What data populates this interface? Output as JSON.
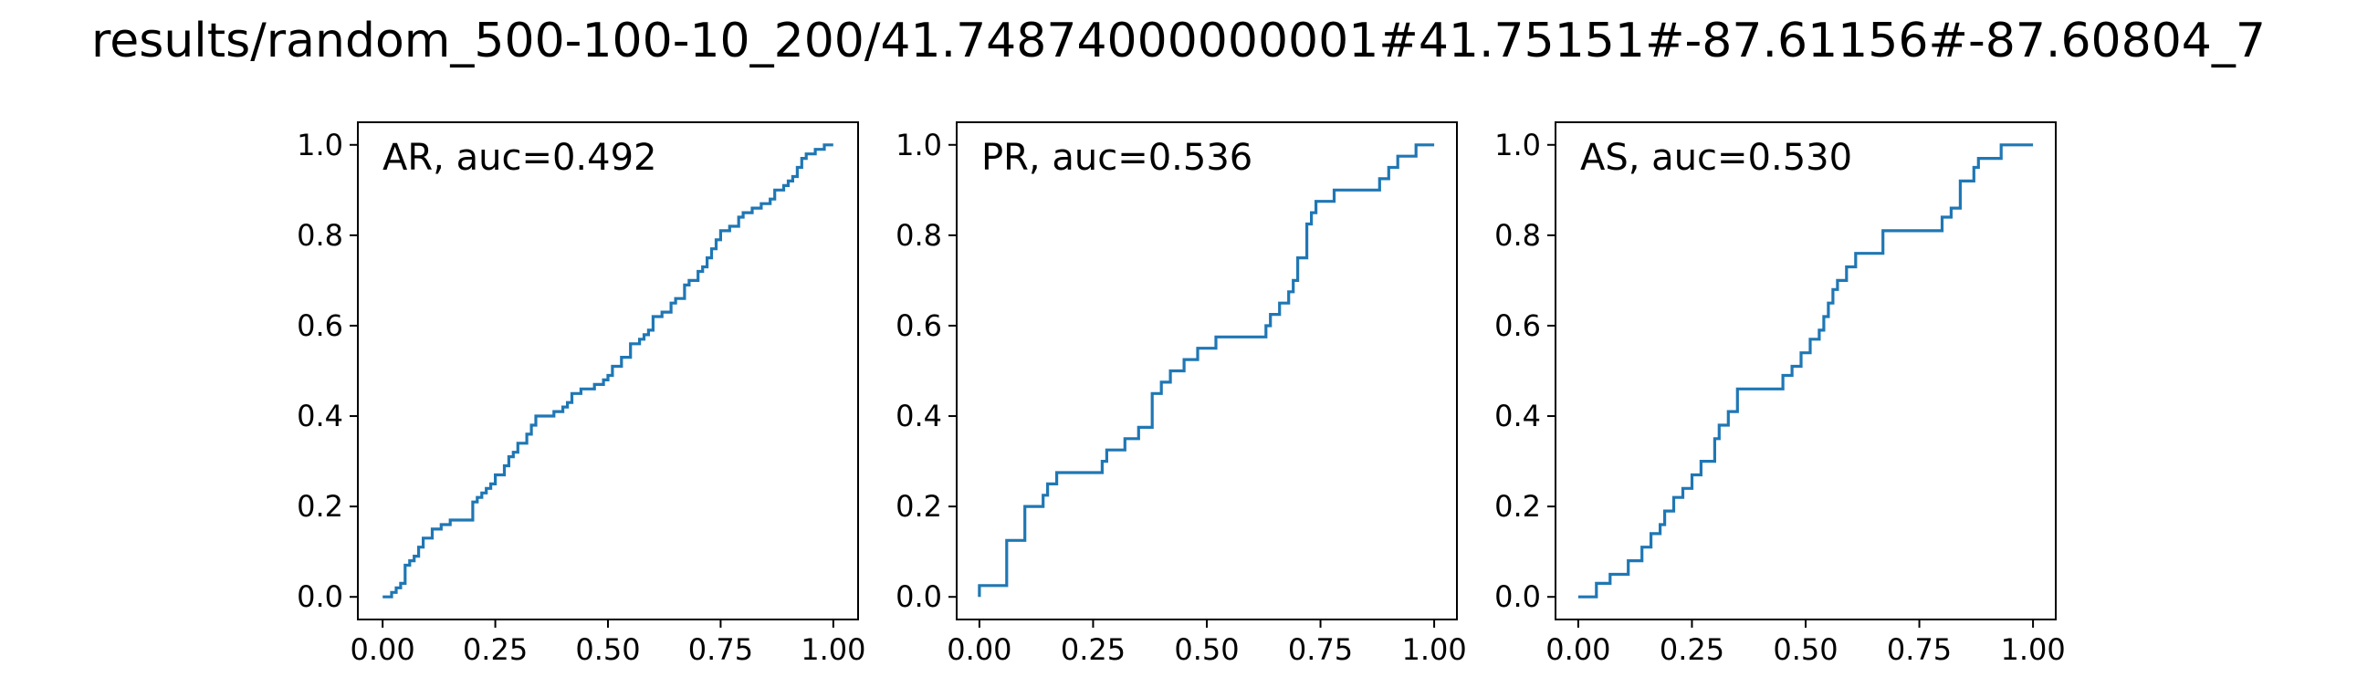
{
  "suptitle": "results/random_500-100-10_200/41.74874000000001#41.75151#-87.61156#-87.60804_7",
  "chart_data": [
    {
      "type": "line",
      "drawstyle": "steps-post",
      "annotation": "AR, auc=0.492",
      "legend": "top-left",
      "grid": false,
      "color": "#1f77b4",
      "xlim": [
        -0.055,
        1.055
      ],
      "ylim": [
        -0.05,
        1.05
      ],
      "xticks": [
        0.0,
        0.25,
        0.5,
        0.75,
        1.0
      ],
      "xtick_labels": [
        "0.00",
        "0.25",
        "0.50",
        "0.75",
        "1.00"
      ],
      "yticks": [
        0.0,
        0.2,
        0.4,
        0.6,
        0.8,
        1.0
      ],
      "ytick_labels": [
        "0.0",
        "0.2",
        "0.4",
        "0.6",
        "0.8",
        "1.0"
      ],
      "x": [
        0.0,
        0.02,
        0.03,
        0.04,
        0.05,
        0.06,
        0.07,
        0.08,
        0.09,
        0.11,
        0.13,
        0.15,
        0.2,
        0.21,
        0.22,
        0.23,
        0.24,
        0.25,
        0.27,
        0.28,
        0.29,
        0.3,
        0.32,
        0.33,
        0.34,
        0.35,
        0.38,
        0.4,
        0.41,
        0.42,
        0.44,
        0.45,
        0.47,
        0.49,
        0.5,
        0.51,
        0.53,
        0.55,
        0.57,
        0.58,
        0.59,
        0.6,
        0.62,
        0.64,
        0.65,
        0.67,
        0.68,
        0.7,
        0.71,
        0.72,
        0.73,
        0.74,
        0.75,
        0.77,
        0.79,
        0.8,
        0.82,
        0.84,
        0.86,
        0.87,
        0.89,
        0.9,
        0.91,
        0.92,
        0.93,
        0.94,
        0.96,
        0.98,
        1.0
      ],
      "y": [
        0.0,
        0.01,
        0.02,
        0.03,
        0.07,
        0.08,
        0.09,
        0.11,
        0.13,
        0.15,
        0.16,
        0.17,
        0.21,
        0.22,
        0.23,
        0.24,
        0.25,
        0.27,
        0.29,
        0.31,
        0.32,
        0.34,
        0.36,
        0.38,
        0.4,
        0.4,
        0.41,
        0.42,
        0.43,
        0.45,
        0.46,
        0.46,
        0.47,
        0.48,
        0.49,
        0.51,
        0.53,
        0.56,
        0.57,
        0.58,
        0.59,
        0.62,
        0.63,
        0.65,
        0.66,
        0.69,
        0.7,
        0.72,
        0.73,
        0.75,
        0.77,
        0.79,
        0.81,
        0.82,
        0.84,
        0.85,
        0.86,
        0.87,
        0.88,
        0.9,
        0.91,
        0.92,
        0.93,
        0.95,
        0.97,
        0.98,
        0.99,
        1.0,
        1.0
      ]
    },
    {
      "type": "line",
      "drawstyle": "steps-post",
      "annotation": "PR, auc=0.536",
      "legend": "top-left",
      "grid": false,
      "color": "#1f77b4",
      "xlim": [
        -0.05,
        1.05
      ],
      "ylim": [
        -0.05,
        1.05
      ],
      "xticks": [
        0.0,
        0.25,
        0.5,
        0.75,
        1.0
      ],
      "xtick_labels": [
        "0.00",
        "0.25",
        "0.50",
        "0.75",
        "1.00"
      ],
      "yticks": [
        0.0,
        0.2,
        0.4,
        0.6,
        0.8,
        1.0
      ],
      "ytick_labels": [
        "0.0",
        "0.2",
        "0.4",
        "0.6",
        "0.8",
        "1.0"
      ],
      "x": [
        0.0,
        0.0,
        0.06,
        0.06,
        0.1,
        0.1,
        0.14,
        0.15,
        0.17,
        0.27,
        0.28,
        0.32,
        0.35,
        0.38,
        0.4,
        0.42,
        0.45,
        0.48,
        0.52,
        0.63,
        0.64,
        0.66,
        0.68,
        0.69,
        0.7,
        0.72,
        0.72,
        0.73,
        0.74,
        0.78,
        0.88,
        0.9,
        0.92,
        0.94,
        0.96,
        1.0
      ],
      "y": [
        0.0,
        0.025,
        0.075,
        0.125,
        0.175,
        0.2,
        0.225,
        0.25,
        0.275,
        0.3,
        0.325,
        0.35,
        0.375,
        0.45,
        0.475,
        0.5,
        0.525,
        0.55,
        0.575,
        0.6,
        0.625,
        0.65,
        0.675,
        0.7,
        0.75,
        0.8,
        0.825,
        0.85,
        0.875,
        0.9,
        0.925,
        0.95,
        0.975,
        0.975,
        1.0,
        1.0
      ]
    },
    {
      "type": "line",
      "drawstyle": "steps-post",
      "annotation": "AS, auc=0.530",
      "legend": "top-left",
      "grid": false,
      "color": "#1f77b4",
      "xlim": [
        -0.05,
        1.05
      ],
      "ylim": [
        -0.05,
        1.05
      ],
      "xticks": [
        0.0,
        0.25,
        0.5,
        0.75,
        1.0
      ],
      "xtick_labels": [
        "0.00",
        "0.25",
        "0.50",
        "0.75",
        "1.00"
      ],
      "yticks": [
        0.0,
        0.2,
        0.4,
        0.6,
        0.8,
        1.0
      ],
      "ytick_labels": [
        "0.0",
        "0.2",
        "0.4",
        "0.6",
        "0.8",
        "1.0"
      ],
      "x": [
        0.0,
        0.04,
        0.07,
        0.11,
        0.14,
        0.16,
        0.18,
        0.19,
        0.21,
        0.23,
        0.25,
        0.27,
        0.3,
        0.31,
        0.33,
        0.35,
        0.38,
        0.45,
        0.47,
        0.49,
        0.51,
        0.53,
        0.54,
        0.55,
        0.56,
        0.57,
        0.59,
        0.61,
        0.63,
        0.67,
        0.8,
        0.82,
        0.84,
        0.87,
        0.88,
        0.93,
        1.0
      ],
      "y": [
        0.0,
        0.03,
        0.05,
        0.08,
        0.11,
        0.14,
        0.16,
        0.19,
        0.22,
        0.24,
        0.27,
        0.3,
        0.35,
        0.38,
        0.41,
        0.46,
        0.46,
        0.49,
        0.51,
        0.54,
        0.57,
        0.59,
        0.62,
        0.65,
        0.68,
        0.7,
        0.73,
        0.76,
        0.76,
        0.81,
        0.84,
        0.86,
        0.92,
        0.95,
        0.97,
        1.0,
        1.0
      ]
    }
  ]
}
